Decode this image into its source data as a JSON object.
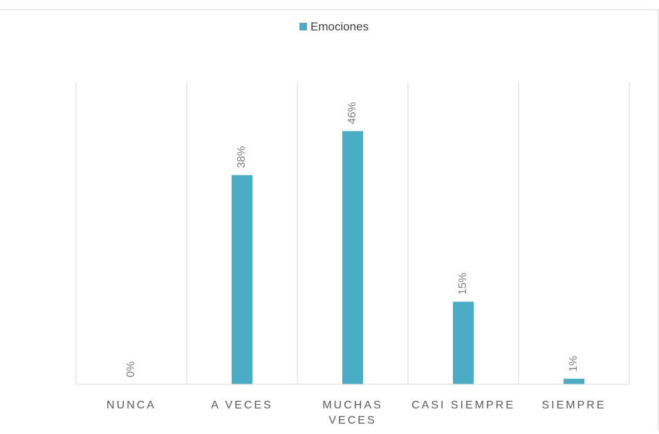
{
  "chart_data": {
    "type": "bar",
    "title": "",
    "xlabel": "",
    "ylabel": "",
    "categories": [
      "NUNCA",
      "A VECES",
      "MUCHAS VECES",
      "CASI SIEMPRE",
      "SIEMPRE"
    ],
    "category_label_lines": [
      [
        "NUNCA"
      ],
      [
        "A VECES"
      ],
      [
        "MUCHAS",
        "VECES"
      ],
      [
        "CASI SIEMPRE"
      ],
      [
        "SIEMPRE"
      ]
    ],
    "series": [
      {
        "name": "Emociones",
        "values": [
          0,
          38,
          46,
          15,
          1
        ]
      }
    ],
    "data_labels": [
      "0%",
      "38%",
      "46%",
      "15%",
      "1%"
    ],
    "ylim": [
      0,
      55
    ],
    "legend_position": "top",
    "grid": "vertical category separators",
    "colors": {
      "bar": "#4BACC6",
      "gridline": "#D9D9D9",
      "axis_text": "#595959",
      "label_text": "#7F7F7F",
      "legend_text": "#404040",
      "frame": "#D9D9D9"
    }
  }
}
